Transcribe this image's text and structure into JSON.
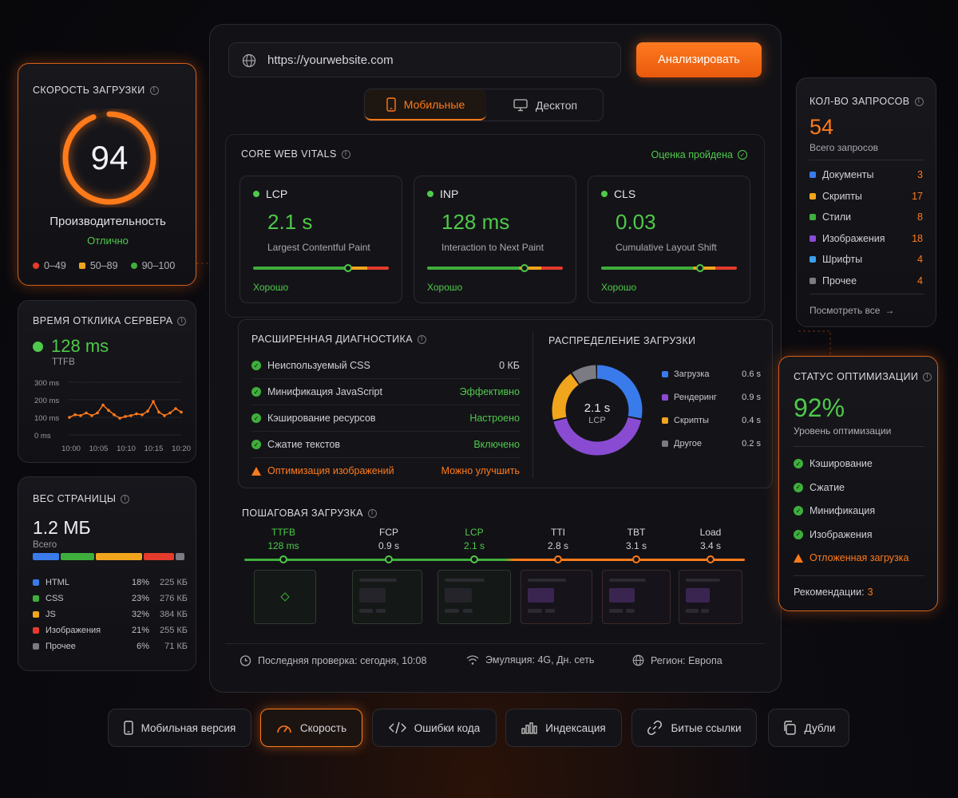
{
  "colors": {
    "accent": "#ff7a1a",
    "good": "#4fc94a",
    "warn": "#f1a51c",
    "bad": "#e53b2c",
    "blue": "#3a7bec",
    "purple": "#8a4bd3",
    "gray": "#7b7b84"
  },
  "url_bar": {
    "value": "https://yourwebsite.com",
    "icon": "globe-icon",
    "analyze_label": "Анализировать"
  },
  "device_tabs": [
    {
      "label": "Мобильные",
      "icon": "phone-icon",
      "active": true
    },
    {
      "label": "Десктоп",
      "icon": "monitor-icon",
      "active": false
    }
  ],
  "speed": {
    "title": "Скорость загрузки",
    "score": "94",
    "score_value": 94,
    "label": "Производительность",
    "rating": "Отлично",
    "legend": [
      "0–49",
      "50–89",
      "90–100"
    ]
  },
  "ttfb": {
    "title": "Время отклика сервера",
    "value": "128 ms",
    "sub": "TTFB",
    "y_ticks": [
      "300 ms",
      "200 ms",
      "100 ms",
      "0 ms"
    ],
    "x_ticks": [
      "10:00",
      "10:05",
      "10:10",
      "10:15",
      "10:20"
    ]
  },
  "chart_data": {
    "type": "line",
    "x": [
      "10:00",
      "10:01",
      "10:02",
      "10:03",
      "10:04",
      "10:05",
      "10:06",
      "10:07",
      "10:08",
      "10:09",
      "10:10",
      "10:11",
      "10:12",
      "10:13",
      "10:14",
      "10:15",
      "10:16",
      "10:17",
      "10:18",
      "10:19",
      "10:20"
    ],
    "values": [
      100,
      115,
      110,
      125,
      110,
      125,
      170,
      140,
      115,
      95,
      105,
      110,
      120,
      115,
      135,
      190,
      130,
      110,
      125,
      150,
      130
    ],
    "ylim": [
      0,
      300
    ],
    "ylabel": "",
    "xlabel": ""
  },
  "page_weight": {
    "title": "Вес страницы",
    "value": "1.2 МБ",
    "sub": "Всего",
    "items": [
      {
        "label": "HTML",
        "pct": "18%",
        "size": "225 КБ",
        "color": "#3a7bec"
      },
      {
        "label": "CSS",
        "pct": "23%",
        "size": "276 КБ",
        "color": "#3fae3c"
      },
      {
        "label": "JS",
        "pct": "32%",
        "size": "384 КБ",
        "color": "#f1a51c"
      },
      {
        "label": "Изображения",
        "pct": "21%",
        "size": "255 КБ",
        "color": "#e53b2c"
      },
      {
        "label": "Прочее",
        "pct": "6%",
        "size": "71 КБ",
        "color": "#7b7b84"
      }
    ],
    "shares": [
      18,
      23,
      32,
      21,
      6
    ]
  },
  "cwv": {
    "title": "Core Web Vitals",
    "status": "Оценка пройдена",
    "vitals": [
      {
        "name": "LCP",
        "value": "2.1 s",
        "desc": "Largest Contentful Paint",
        "rating": "Хорошо",
        "pos": 0.7
      },
      {
        "name": "INP",
        "value": "128 ms",
        "desc": "Interaction to Next Paint",
        "rating": "Хорошо",
        "pos": 0.72
      },
      {
        "name": "CLS",
        "value": "0.03",
        "desc": "Cumulative Layout Shift",
        "rating": "Хорошо",
        "pos": 0.73
      }
    ]
  },
  "diagnostics": {
    "title": "Расширенная диагностика",
    "rows": [
      {
        "label": "Неиспользуемый CSS",
        "value": "0 КБ",
        "state": "ok"
      },
      {
        "label": "Минификация JavaScript",
        "value": "Эффективно",
        "state": "ok"
      },
      {
        "label": "Кэширование ресурсов",
        "value": "Настроено",
        "state": "ok"
      },
      {
        "label": "Сжатие текстов",
        "value": "Включено",
        "state": "ok"
      },
      {
        "label": "Оптимизация изображений",
        "value": "Можно улучшить",
        "state": "warn"
      }
    ]
  },
  "distribution": {
    "title": "Распределение загрузки",
    "center_value": "2.1 s",
    "center_label": "LCP",
    "items": [
      {
        "label": "Загрузка",
        "value": "0.6 s",
        "seconds": 0.6,
        "color": "#3a7bec"
      },
      {
        "label": "Рендеринг",
        "value": "0.9 s",
        "seconds": 0.9,
        "color": "#8a4bd3"
      },
      {
        "label": "Скрипты",
        "value": "0.4 s",
        "seconds": 0.4,
        "color": "#f1a51c"
      },
      {
        "label": "Другое",
        "value": "0.2 s",
        "seconds": 0.2,
        "color": "#7b7b84"
      }
    ]
  },
  "stepwise": {
    "title": "Пошаговая загрузка",
    "milestones": [
      {
        "name": "TTFB",
        "value": "128 ms",
        "green": true
      },
      {
        "name": "FCP",
        "value": "0.9 s",
        "green": false
      },
      {
        "name": "LCP",
        "value": "2.1 s",
        "green": true
      },
      {
        "name": "TTI",
        "value": "2.8 s",
        "green": false
      },
      {
        "name": "TBT",
        "value": "3.1 s",
        "green": false
      },
      {
        "name": "Load",
        "value": "3.4 s",
        "green": false
      }
    ]
  },
  "footer": {
    "last_check": "Последняя проверка: сегодня, 10:08",
    "emulation": "Эмуляция: 4G, Дн. сеть",
    "region": "Регион: Европа"
  },
  "requests": {
    "title": "Кол-во запросов",
    "total": "54",
    "sub": "Всего запросов",
    "items": [
      {
        "label": "Документы",
        "value": "3",
        "color": "#3a7bec"
      },
      {
        "label": "Скрипты",
        "value": "17",
        "color": "#f1a51c"
      },
      {
        "label": "Стили",
        "value": "8",
        "color": "#3fae3c"
      },
      {
        "label": "Изображения",
        "value": "18",
        "color": "#8a4bd3"
      },
      {
        "label": "Шрифты",
        "value": "4",
        "color": "#3aa0ec"
      },
      {
        "label": "Прочее",
        "value": "4",
        "color": "#7b7b84"
      }
    ],
    "link": "Посмотреть все"
  },
  "optimization": {
    "title": "Статус оптимизации",
    "value": "92%",
    "sub": "Уровень оптимизации",
    "items": [
      {
        "label": "Кэширование",
        "state": "ok"
      },
      {
        "label": "Сжатие",
        "state": "ok"
      },
      {
        "label": "Минификация",
        "state": "ok"
      },
      {
        "label": "Изображения",
        "state": "ok"
      },
      {
        "label": "Отложенная загрузка",
        "state": "warn"
      }
    ],
    "rec_label": "Рекомендации:",
    "rec_count": "3"
  },
  "bottom_nav": [
    {
      "label": "Мобильная версия",
      "icon": "phone-icon"
    },
    {
      "label": "Скорость",
      "icon": "speedometer-icon",
      "active": true
    },
    {
      "label": "Ошибки кода",
      "icon": "code-icon"
    },
    {
      "label": "Индексация",
      "icon": "bar-chart-icon"
    },
    {
      "label": "Битые ссылки",
      "icon": "link-icon"
    },
    {
      "label": "Дубли",
      "icon": "copy-icon"
    }
  ]
}
